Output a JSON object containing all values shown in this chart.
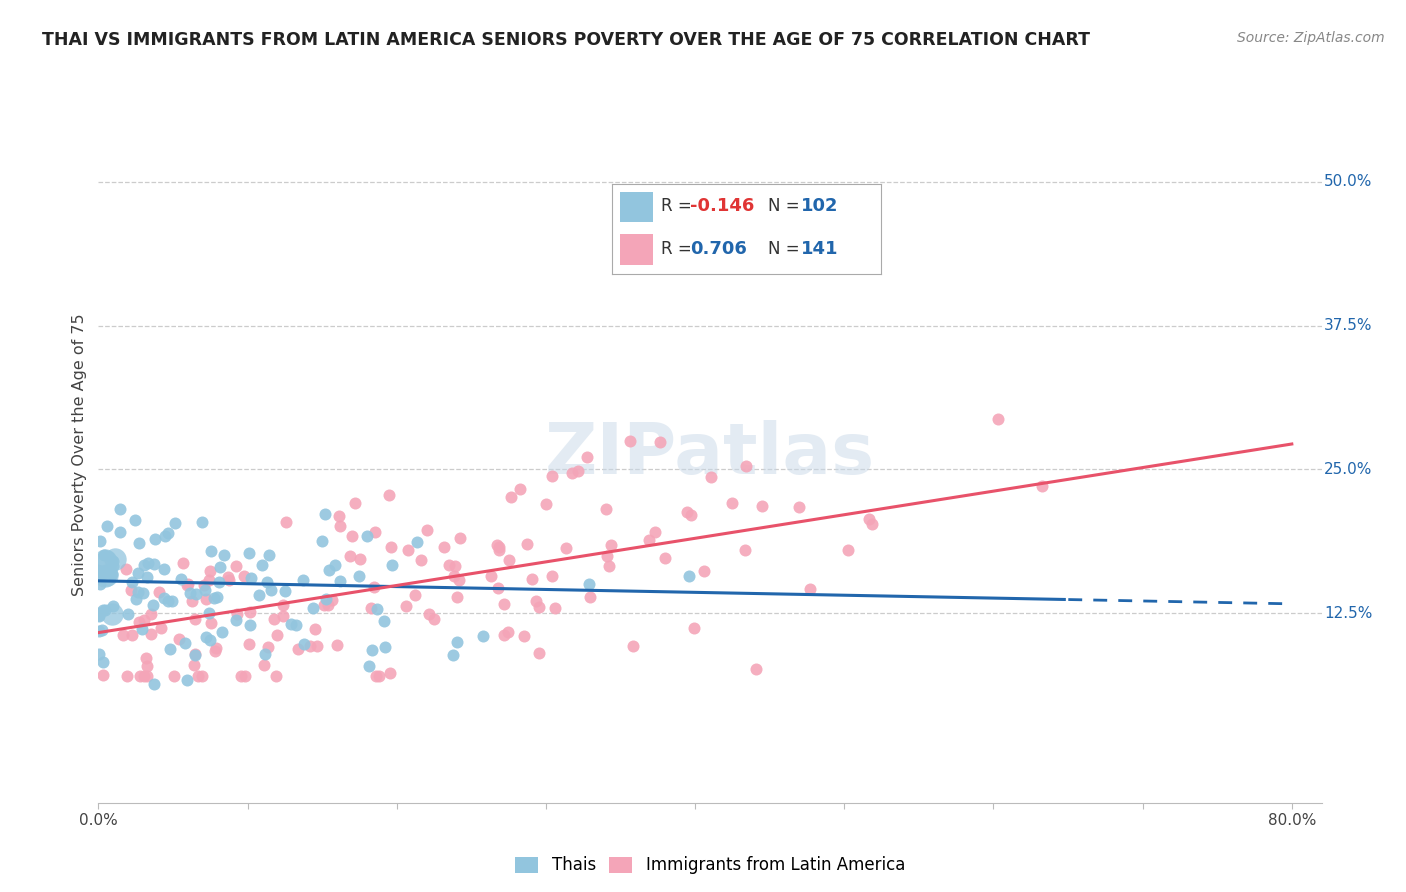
{
  "title": "THAI VS IMMIGRANTS FROM LATIN AMERICA SENIORS POVERTY OVER THE AGE OF 75 CORRELATION CHART",
  "source": "Source: ZipAtlas.com",
  "ylabel_label": "Seniors Poverty Over the Age of 75",
  "ytick_values": [
    0.125,
    0.25,
    0.375,
    0.5
  ],
  "ytick_labels": [
    "12.5%",
    "25.0%",
    "37.5%",
    "50.0%"
  ],
  "xtick_values": [
    0.0,
    0.1,
    0.2,
    0.3,
    0.4,
    0.5,
    0.6,
    0.7,
    0.8
  ],
  "xtick_labels": [
    "0.0%",
    "",
    "",
    "",
    "",
    "",
    "",
    "",
    "80.0%"
  ],
  "xlim": [
    0.0,
    0.82
  ],
  "ylim": [
    -0.04,
    0.565
  ],
  "thai_color": "#92c5de",
  "latin_color": "#f4a5b8",
  "thai_trend_color": "#2166ac",
  "latin_trend_color": "#e8526a",
  "thai_trend_solid_end": 0.65,
  "thai_slope": -0.025,
  "thai_intercept": 0.153,
  "latin_slope": 0.205,
  "latin_intercept": 0.108,
  "watermark_text": "ZIPatlas",
  "watermark_color": "#c8d8e8",
  "watermark_alpha": 0.5,
  "legend_R1": "R = -0.146",
  "legend_N1": "N = 102",
  "legend_R2": "R =  0.706",
  "legend_N2": "N = 141",
  "legend_R_color1": "#e03535",
  "legend_R_color2": "#2166ac",
  "legend_N_color": "#2166ac",
  "bottom_legend_label1": "Thais",
  "bottom_legend_label2": "Immigrants from Latin America",
  "thai_N": 102,
  "latin_N": 141
}
